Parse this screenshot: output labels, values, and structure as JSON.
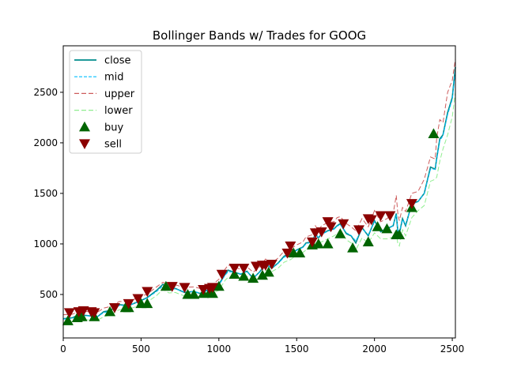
{
  "chart_data": {
    "type": "line",
    "title": "Bollinger Bands w/ Trades for GOOG",
    "xlabel": "",
    "ylabel": "",
    "xlim": [
      0,
      2520
    ],
    "ylim": [
      70,
      2960
    ],
    "x_ticks": [
      0,
      500,
      1000,
      1500,
      2000,
      2500
    ],
    "y_ticks": [
      500,
      1000,
      1500,
      2000,
      2500
    ],
    "grid": false,
    "legend_position": "upper-left",
    "legend": [
      "close",
      "mid",
      "upper",
      "lower",
      "buy",
      "sell"
    ],
    "series": [
      {
        "name": "close",
        "color": "#008b8b",
        "x": [
          0,
          60,
          100,
          160,
          220,
          260,
          300,
          360,
          420,
          500,
          540,
          600,
          640,
          680,
          720,
          780,
          840,
          880,
          920,
          960,
          1000,
          1040,
          1060,
          1100,
          1140,
          1180,
          1220,
          1260,
          1300,
          1340,
          1380,
          1420,
          1460,
          1480,
          1500,
          1540,
          1560,
          1600,
          1620,
          1640,
          1660,
          1700,
          1740,
          1760,
          1780,
          1820,
          1850,
          1880,
          1920,
          1960,
          2000,
          2040,
          2080,
          2120,
          2140,
          2150,
          2160,
          2180,
          2200,
          2240,
          2280,
          2320,
          2360,
          2390,
          2400,
          2420,
          2440,
          2470,
          2500,
          2520
        ],
        "y": [
          260,
          270,
          300,
          290,
          280,
          330,
          340,
          400,
          390,
          440,
          470,
          540,
          600,
          550,
          560,
          520,
          530,
          510,
          540,
          560,
          600,
          700,
          740,
          720,
          700,
          730,
          660,
          720,
          800,
          760,
          810,
          880,
          900,
          920,
          940,
          970,
          1010,
          1020,
          1100,
          1060,
          1100,
          1130,
          1150,
          1180,
          1200,
          1100,
          1080,
          1010,
          1160,
          1080,
          1230,
          1120,
          1150,
          1180,
          1300,
          1120,
          1100,
          1250,
          1180,
          1400,
          1420,
          1500,
          1760,
          1740,
          1850,
          2040,
          2080,
          2300,
          2450,
          2750
        ]
      },
      {
        "name": "mid",
        "color": "#00bfff",
        "x": [
          0,
          60,
          100,
          160,
          220,
          260,
          300,
          360,
          420,
          500,
          540,
          600,
          640,
          680,
          720,
          780,
          840,
          880,
          920,
          960,
          1000,
          1040,
          1060,
          1100,
          1140,
          1180,
          1220,
          1260,
          1300,
          1340,
          1380,
          1420,
          1460,
          1480,
          1500,
          1540,
          1560,
          1600,
          1620,
          1640,
          1660,
          1700,
          1740,
          1760,
          1780,
          1820,
          1850,
          1880,
          1920,
          1960,
          2000,
          2040,
          2080,
          2120,
          2140,
          2150,
          2160,
          2180,
          2200,
          2240,
          2280,
          2320,
          2360,
          2390,
          2400,
          2420,
          2440,
          2470,
          2500,
          2520
        ],
        "y": [
          255,
          265,
          290,
          288,
          282,
          320,
          335,
          390,
          392,
          435,
          465,
          530,
          585,
          555,
          555,
          525,
          528,
          515,
          535,
          555,
          590,
          690,
          725,
          720,
          705,
          725,
          670,
          715,
          790,
          765,
          805,
          870,
          895,
          915,
          935,
          965,
          1000,
          1020,
          1090,
          1065,
          1095,
          1125,
          1145,
          1175,
          1190,
          1110,
          1085,
          1030,
          1150,
          1090,
          1220,
          1130,
          1150,
          1180,
          1290,
          1140,
          1110,
          1240,
          1190,
          1390,
          1420,
          1500,
          1740,
          1740,
          1840,
          2020,
          2070,
          2280,
          2430,
          2720
        ]
      },
      {
        "name": "upper",
        "color": "#cd5c5c",
        "x": [
          0,
          60,
          100,
          160,
          220,
          260,
          300,
          360,
          420,
          500,
          540,
          600,
          640,
          680,
          720,
          780,
          840,
          880,
          920,
          960,
          1000,
          1040,
          1060,
          1100,
          1140,
          1180,
          1220,
          1260,
          1300,
          1340,
          1380,
          1420,
          1460,
          1480,
          1500,
          1540,
          1560,
          1600,
          1620,
          1640,
          1660,
          1700,
          1740,
          1760,
          1780,
          1820,
          1850,
          1880,
          1920,
          1960,
          2000,
          2040,
          2080,
          2120,
          2140,
          2150,
          2160,
          2180,
          2200,
          2240,
          2280,
          2320,
          2360,
          2390,
          2400,
          2420,
          2440,
          2470,
          2500,
          2520
        ],
        "y": [
          300,
          305,
          335,
          330,
          325,
          365,
          380,
          430,
          430,
          480,
          505,
          575,
          620,
          600,
          595,
          570,
          575,
          560,
          580,
          600,
          650,
          750,
          790,
          770,
          750,
          775,
          720,
          770,
          850,
          810,
          860,
          930,
          950,
          970,
          990,
          1020,
          1070,
          1090,
          1180,
          1130,
          1180,
          1210,
          1220,
          1260,
          1270,
          1200,
          1170,
          1130,
          1250,
          1170,
          1330,
          1220,
          1250,
          1300,
          1480,
          1300,
          1230,
          1360,
          1320,
          1500,
          1520,
          1640,
          1860,
          1840,
          2050,
          2230,
          2200,
          2500,
          2620,
          2830
        ]
      },
      {
        "name": "lower",
        "color": "#90ee90",
        "x": [
          0,
          60,
          100,
          160,
          220,
          260,
          300,
          360,
          420,
          500,
          540,
          600,
          640,
          680,
          720,
          780,
          840,
          880,
          920,
          960,
          1000,
          1040,
          1060,
          1100,
          1140,
          1180,
          1220,
          1260,
          1300,
          1340,
          1380,
          1420,
          1460,
          1480,
          1500,
          1540,
          1560,
          1600,
          1620,
          1640,
          1660,
          1700,
          1740,
          1760,
          1780,
          1820,
          1850,
          1880,
          1920,
          1960,
          2000,
          2040,
          2080,
          2120,
          2140,
          2150,
          2160,
          2180,
          2200,
          2240,
          2280,
          2320,
          2360,
          2390,
          2400,
          2420,
          2440,
          2470,
          2500,
          2520
        ],
        "y": [
          220,
          230,
          250,
          250,
          245,
          280,
          295,
          350,
          355,
          395,
          425,
          490,
          550,
          515,
          520,
          485,
          485,
          475,
          495,
          515,
          540,
          640,
          670,
          680,
          665,
          680,
          625,
          665,
          740,
          725,
          760,
          820,
          845,
          865,
          885,
          915,
          940,
          960,
          1010,
          1010,
          1020,
          1050,
          1080,
          1100,
          1120,
          1040,
          1010,
          940,
          1060,
          1010,
          1110,
          1050,
          1050,
          1070,
          1110,
          1000,
          980,
          1140,
          1080,
          1260,
          1330,
          1380,
          1620,
          1640,
          1660,
          1820,
          1940,
          2080,
          2260,
          2500
        ]
      }
    ],
    "trades": {
      "buy": {
        "color": "#006400",
        "x": [
          30,
          90,
          120,
          200,
          300,
          400,
          420,
          500,
          540,
          660,
          800,
          840,
          900,
          940,
          960,
          1000,
          1100,
          1160,
          1220,
          1280,
          1320,
          1480,
          1520,
          1600,
          1640,
          1700,
          1780,
          1860,
          1960,
          2020,
          2080,
          2140,
          2160,
          2240,
          2380
        ],
        "y": [
          240,
          270,
          280,
          280,
          330,
          370,
          370,
          410,
          410,
          580,
          500,
          500,
          510,
          520,
          510,
          580,
          700,
          680,
          660,
          690,
          720,
          910,
          910,
          990,
          1000,
          1000,
          1100,
          960,
          1020,
          1170,
          1150,
          1090,
          1090,
          1360,
          2090
        ]
      },
      "sell": {
        "color": "#8b0000",
        "x": [
          40,
          100,
          130,
          180,
          200,
          330,
          420,
          480,
          540,
          700,
          780,
          900,
          940,
          960,
          1020,
          1100,
          1160,
          1240,
          1280,
          1300,
          1340,
          1440,
          1460,
          1600,
          1620,
          1660,
          1700,
          1720,
          1800,
          1900,
          1960,
          1980,
          2040,
          2100,
          2240
        ],
        "y": [
          320,
          330,
          340,
          330,
          320,
          370,
          410,
          460,
          530,
          580,
          570,
          550,
          560,
          570,
          700,
          760,
          760,
          780,
          790,
          790,
          800,
          910,
          980,
          1020,
          1110,
          1120,
          1220,
          1170,
          1200,
          1140,
          1250,
          1240,
          1280,
          1280,
          1400
        ]
      }
    }
  }
}
